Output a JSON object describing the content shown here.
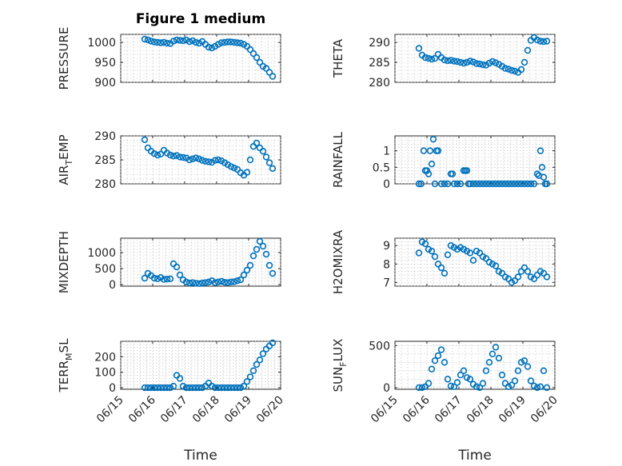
{
  "figure": {
    "title": "Figure 1 medium",
    "x_label": "Time",
    "marker_color": "#0072BD",
    "axis_color": "#262626"
  },
  "chart_data": [
    {
      "type": "scatter",
      "ylabel": "PRESSURE",
      "xlim": [
        "06/15",
        "06/20"
      ],
      "xticks": [
        "06/15",
        "06/16",
        "06/17",
        "06/18",
        "06/19",
        "06/20"
      ],
      "ylim": [
        900,
        1020
      ],
      "yticks": [
        900,
        950,
        1000
      ],
      "x": [
        0.75,
        0.85,
        0.95,
        1.05,
        1.15,
        1.25,
        1.35,
        1.45,
        1.55,
        1.65,
        1.75,
        1.85,
        1.95,
        2.05,
        2.15,
        2.25,
        2.35,
        2.45,
        2.55,
        2.65,
        2.75,
        2.85,
        2.95,
        3.05,
        3.15,
        3.25,
        3.35,
        3.45,
        3.55,
        3.65,
        3.75,
        3.85,
        3.95,
        4.05,
        4.15,
        4.25,
        4.35,
        4.45,
        4.55,
        4.65,
        4.75
      ],
      "y": [
        1008,
        1006,
        1003,
        1001,
        1000,
        999,
        1000,
        998,
        997,
        1003,
        1006,
        1005,
        1004,
        1006,
        1002,
        1004,
        1000,
        998,
        1002,
        995,
        988,
        986,
        990,
        995,
        999,
        1000,
        1001,
        1001,
        1000,
        999,
        998,
        995,
        990,
        982,
        972,
        962,
        950,
        940,
        935,
        925,
        915
      ]
    },
    {
      "type": "scatter",
      "ylabel": "THETA",
      "xlim": [
        "06/15",
        "06/20"
      ],
      "xticks": [
        "06/15",
        "06/16",
        "06/17",
        "06/18",
        "06/19",
        "06/20"
      ],
      "ylim": [
        280,
        292
      ],
      "yticks": [
        280,
        285,
        290
      ],
      "x": [
        0.75,
        0.85,
        0.95,
        1.05,
        1.15,
        1.25,
        1.35,
        1.45,
        1.55,
        1.65,
        1.75,
        1.85,
        1.95,
        2.05,
        2.15,
        2.25,
        2.35,
        2.45,
        2.55,
        2.65,
        2.75,
        2.85,
        2.95,
        3.05,
        3.15,
        3.25,
        3.35,
        3.45,
        3.55,
        3.65,
        3.75,
        3.85,
        3.95,
        4.05,
        4.15,
        4.25,
        4.35,
        4.45,
        4.55,
        4.65,
        4.75
      ],
      "y": [
        288.5,
        286.8,
        286.2,
        286.0,
        285.8,
        286.0,
        287.0,
        286.2,
        285.6,
        285.4,
        285.5,
        285.3,
        285.2,
        285.0,
        284.8,
        285.0,
        285.3,
        285.1,
        284.7,
        284.6,
        284.4,
        284.3,
        284.8,
        285.2,
        284.9,
        284.5,
        284.0,
        283.5,
        283.3,
        283.0,
        282.8,
        282.5,
        283.2,
        285.0,
        288.0,
        290.5,
        291.2,
        290.6,
        290.3,
        290.2,
        290.3
      ]
    },
    {
      "type": "scatter",
      "ylabel": "AIR_TEMP",
      "xlim": [
        "06/15",
        "06/20"
      ],
      "xticks": [
        "06/15",
        "06/16",
        "06/17",
        "06/18",
        "06/19",
        "06/20"
      ],
      "ylim": [
        280,
        290
      ],
      "yticks": [
        280,
        285,
        290
      ],
      "x": [
        0.75,
        0.85,
        0.95,
        1.05,
        1.15,
        1.25,
        1.35,
        1.45,
        1.55,
        1.65,
        1.75,
        1.85,
        1.95,
        2.05,
        2.15,
        2.25,
        2.35,
        2.45,
        2.55,
        2.65,
        2.75,
        2.85,
        2.95,
        3.05,
        3.15,
        3.25,
        3.35,
        3.45,
        3.55,
        3.65,
        3.75,
        3.85,
        3.95,
        4.05,
        4.15,
        4.25,
        4.35,
        4.45,
        4.55,
        4.65,
        4.75
      ],
      "y": [
        289.2,
        287.5,
        286.8,
        286.3,
        286.0,
        286.2,
        287.0,
        286.4,
        286.0,
        285.8,
        285.9,
        285.6,
        285.5,
        285.4,
        285.0,
        285.2,
        285.4,
        285.2,
        284.9,
        284.7,
        284.6,
        284.5,
        284.9,
        285.0,
        284.8,
        284.4,
        284.0,
        283.6,
        283.3,
        283.0,
        282.3,
        281.8,
        282.4,
        285.0,
        287.8,
        288.5,
        287.5,
        286.8,
        285.6,
        284.4,
        283.2
      ]
    },
    {
      "type": "scatter",
      "ylabel": "RAINFALL",
      "xlim": [
        "06/15",
        "06/20"
      ],
      "xticks": [
        "06/15",
        "06/16",
        "06/17",
        "06/18",
        "06/19",
        "06/20"
      ],
      "ylim": [
        0,
        1.45
      ],
      "yticks": [
        0,
        0.5,
        1
      ],
      "x": [
        0.75,
        0.82,
        0.9,
        0.95,
        1.0,
        1.05,
        1.1,
        1.15,
        1.2,
        1.25,
        1.3,
        1.35,
        1.45,
        1.55,
        1.65,
        1.75,
        1.8,
        1.85,
        1.95,
        2.05,
        2.15,
        2.2,
        2.25,
        2.3,
        2.35,
        2.45,
        2.55,
        2.65,
        2.75,
        2.85,
        2.95,
        3.05,
        3.15,
        3.25,
        3.35,
        3.45,
        3.55,
        3.65,
        3.75,
        3.85,
        3.95,
        4.05,
        4.15,
        4.25,
        4.35,
        4.45,
        4.5,
        4.55,
        4.6,
        4.65,
        4.7,
        4.75
      ],
      "y": [
        0,
        0,
        1.0,
        0.4,
        0.4,
        0.3,
        1.0,
        0.6,
        1.35,
        0,
        1.0,
        1.0,
        0,
        0,
        0,
        0.3,
        0.3,
        0,
        0,
        0,
        0.4,
        0.4,
        0.4,
        0,
        0,
        0,
        0,
        0,
        0,
        0,
        0,
        0,
        0,
        0,
        0,
        0,
        0,
        0,
        0,
        0,
        0,
        0,
        0,
        0,
        0,
        0.3,
        0.25,
        1.0,
        0.5,
        0.2,
        0,
        0
      ]
    },
    {
      "type": "scatter",
      "ylabel": "MIXDEPTH",
      "xlim": [
        "06/15",
        "06/20"
      ],
      "xticks": [
        "06/15",
        "06/16",
        "06/17",
        "06/18",
        "06/19",
        "06/20"
      ],
      "ylim": [
        -50,
        1450
      ],
      "yticks": [
        0,
        500,
        1000
      ],
      "x": [
        0.75,
        0.85,
        0.95,
        1.05,
        1.15,
        1.25,
        1.35,
        1.45,
        1.55,
        1.65,
        1.75,
        1.85,
        1.95,
        2.05,
        2.15,
        2.25,
        2.35,
        2.45,
        2.55,
        2.65,
        2.75,
        2.85,
        2.95,
        3.05,
        3.15,
        3.25,
        3.35,
        3.45,
        3.55,
        3.65,
        3.75,
        3.85,
        3.95,
        4.05,
        4.15,
        4.25,
        4.35,
        4.45,
        4.55,
        4.65,
        4.75
      ],
      "y": [
        200,
        350,
        280,
        200,
        180,
        220,
        160,
        170,
        180,
        650,
        550,
        300,
        150,
        80,
        50,
        60,
        40,
        30,
        50,
        60,
        80,
        120,
        60,
        80,
        100,
        70,
        60,
        80,
        90,
        120,
        150,
        300,
        450,
        600,
        900,
        1100,
        1350,
        1200,
        950,
        600,
        350
      ]
    },
    {
      "type": "scatter",
      "ylabel": "H2OMIXRA",
      "xlim": [
        "06/15",
        "06/20"
      ],
      "xticks": [
        "06/15",
        "06/16",
        "06/17",
        "06/18",
        "06/19",
        "06/20"
      ],
      "ylim": [
        6.8,
        9.4
      ],
      "yticks": [
        7,
        8,
        9
      ],
      "x": [
        0.75,
        0.85,
        0.95,
        1.05,
        1.15,
        1.25,
        1.35,
        1.45,
        1.55,
        1.65,
        1.75,
        1.85,
        1.95,
        2.05,
        2.15,
        2.25,
        2.35,
        2.45,
        2.55,
        2.65,
        2.75,
        2.85,
        2.95,
        3.05,
        3.15,
        3.25,
        3.35,
        3.45,
        3.55,
        3.65,
        3.75,
        3.85,
        3.95,
        4.05,
        4.15,
        4.25,
        4.35,
        4.45,
        4.55,
        4.65,
        4.75
      ],
      "y": [
        8.6,
        9.2,
        9.1,
        8.8,
        8.7,
        8.4,
        8.0,
        7.8,
        7.5,
        8.5,
        9.0,
        8.9,
        8.8,
        8.9,
        8.8,
        8.7,
        8.6,
        8.2,
        8.7,
        8.6,
        8.4,
        8.3,
        8.1,
        8.0,
        7.9,
        7.6,
        7.5,
        7.3,
        7.2,
        7.0,
        7.1,
        7.3,
        7.6,
        7.8,
        7.6,
        7.3,
        7.2,
        7.4,
        7.6,
        7.5,
        7.3
      ]
    },
    {
      "type": "scatter",
      "ylabel": "TERR_MSL",
      "xlim": [
        "06/15",
        "06/20"
      ],
      "xticks": [
        "06/15",
        "06/16",
        "06/17",
        "06/18",
        "06/19",
        "06/20"
      ],
      "ylim": [
        -10,
        300
      ],
      "yticks": [
        0,
        100,
        200
      ],
      "x": [
        0.75,
        0.85,
        0.95,
        1.05,
        1.15,
        1.25,
        1.35,
        1.45,
        1.55,
        1.65,
        1.75,
        1.85,
        1.95,
        2.05,
        2.15,
        2.25,
        2.35,
        2.45,
        2.55,
        2.65,
        2.75,
        2.85,
        2.95,
        3.05,
        3.15,
        3.25,
        3.35,
        3.45,
        3.55,
        3.65,
        3.75,
        3.85,
        3.95,
        4.05,
        4.15,
        4.25,
        4.35,
        4.45,
        4.55,
        4.65,
        4.75
      ],
      "y": [
        0,
        0,
        0,
        0,
        0,
        0,
        0,
        0,
        0,
        10,
        80,
        60,
        10,
        0,
        0,
        0,
        0,
        0,
        0,
        10,
        30,
        10,
        0,
        0,
        0,
        0,
        0,
        0,
        0,
        0,
        0,
        10,
        40,
        70,
        110,
        150,
        180,
        220,
        250,
        270,
        290
      ]
    },
    {
      "type": "scatter",
      "ylabel": "SUN_FLUX",
      "xlim": [
        "06/15",
        "06/20"
      ],
      "xticks": [
        "06/15",
        "06/16",
        "06/17",
        "06/18",
        "06/19",
        "06/20"
      ],
      "ylim": [
        -20,
        550
      ],
      "yticks": [
        0,
        500
      ],
      "x": [
        0.75,
        0.85,
        0.95,
        1.05,
        1.15,
        1.25,
        1.35,
        1.45,
        1.55,
        1.65,
        1.75,
        1.85,
        1.95,
        2.05,
        2.15,
        2.25,
        2.35,
        2.45,
        2.55,
        2.65,
        2.75,
        2.85,
        2.95,
        3.05,
        3.15,
        3.25,
        3.35,
        3.45,
        3.55,
        3.65,
        3.75,
        3.85,
        3.95,
        4.05,
        4.15,
        4.25,
        4.35,
        4.45,
        4.55,
        4.65,
        4.75
      ],
      "y": [
        0,
        0,
        10,
        50,
        220,
        320,
        380,
        450,
        300,
        100,
        20,
        10,
        60,
        150,
        200,
        120,
        100,
        40,
        10,
        0,
        50,
        200,
        300,
        400,
        480,
        350,
        150,
        50,
        10,
        30,
        80,
        200,
        300,
        320,
        250,
        80,
        20,
        0,
        10,
        200,
        0
      ]
    }
  ]
}
